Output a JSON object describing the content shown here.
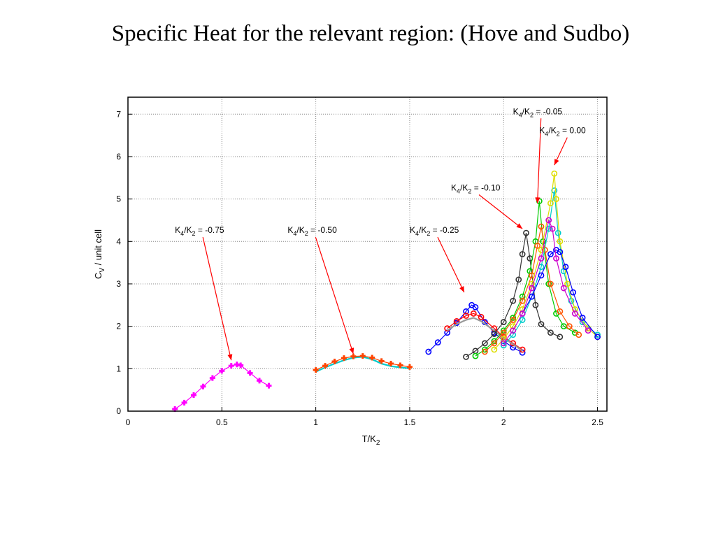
{
  "slide": {
    "title": "Specific Heat for the relevant region: (Hove and Sudbo)"
  },
  "chart_data": {
    "type": "scatter",
    "xlim": [
      0,
      2.55
    ],
    "ylim": [
      0,
      7.4
    ],
    "x_ticks": [
      0,
      0.5,
      1,
      1.5,
      2,
      2.5
    ],
    "x_tick_labels": [
      "0",
      "0.5",
      "1",
      "1.5",
      "2",
      "2.5"
    ],
    "y_ticks": [
      0,
      1,
      2,
      3,
      4,
      5,
      6,
      7
    ],
    "y_tick_labels": [
      "0",
      "1",
      "2",
      "3",
      "4",
      "5",
      "6",
      "7"
    ],
    "xlabel": {
      "main": "T/K",
      "sub": "2"
    },
    "ylabel": {
      "main": "C",
      "sub": "V",
      "rest": " / unit cell"
    },
    "grid": true,
    "annotations": [
      {
        "text": "K4/K2 = -0.75",
        "a": "K",
        "a_sub": "4",
        "b": "/K",
        "b_sub": "2",
        "c": " = -0.75",
        "x": 0.25,
        "y": 4.2,
        "arrow_to": [
          0.55,
          1.2
        ]
      },
      {
        "text": "K4/K2 = -0.50",
        "a": "K",
        "a_sub": "4",
        "b": "/K",
        "b_sub": "2",
        "c": " = -0.50",
        "x": 0.85,
        "y": 4.2,
        "arrow_to": [
          1.2,
          1.35
        ]
      },
      {
        "text": "K4/K2 = -0.25",
        "a": "K",
        "a_sub": "4",
        "b": "/K",
        "b_sub": "2",
        "c": " = -0.25",
        "x": 1.5,
        "y": 4.2,
        "arrow_to": [
          1.79,
          2.8
        ]
      },
      {
        "text": "K4/K2 = -0.10",
        "a": "K",
        "a_sub": "4",
        "b": "/K",
        "b_sub": "2",
        "c": " = -0.10",
        "x": 1.72,
        "y": 5.2,
        "arrow_to": [
          2.1,
          4.3
        ]
      },
      {
        "text": "K4/K2 = -0.05",
        "a": "K",
        "a_sub": "4",
        "b": "/K",
        "b_sub": "2",
        "c": " = -0.05",
        "x": 2.05,
        "y": 7.0,
        "arrow_to": [
          2.18,
          4.9
        ]
      },
      {
        "text": "K4/K2 = 0.00",
        "a": "K",
        "a_sub": "4",
        "b": "/K",
        "b_sub": "2",
        "c": " = 0.00",
        "x": 2.19,
        "y": 6.55,
        "arrow_to": [
          2.27,
          5.8
        ]
      }
    ],
    "series": [
      {
        "color": "#ff00ff",
        "marker": "cross",
        "x": [
          0.25,
          0.3,
          0.35,
          0.4,
          0.45,
          0.5,
          0.55,
          0.58,
          0.6,
          0.65,
          0.7,
          0.75
        ],
        "y": [
          0.05,
          0.2,
          0.38,
          0.58,
          0.78,
          0.95,
          1.07,
          1.1,
          1.08,
          0.9,
          0.72,
          0.6
        ]
      },
      {
        "color": "#00cccc",
        "marker": "line",
        "x": [
          1.0,
          1.05,
          1.1,
          1.15,
          1.2,
          1.25,
          1.3,
          1.35,
          1.4,
          1.45,
          1.5
        ],
        "y": [
          0.93,
          1.03,
          1.12,
          1.2,
          1.26,
          1.28,
          1.22,
          1.12,
          1.06,
          1.03,
          1.01
        ]
      },
      {
        "color": "#ff4400",
        "marker": "cross",
        "x": [
          1.0,
          1.05,
          1.1,
          1.15,
          1.2,
          1.25,
          1.3,
          1.35,
          1.4,
          1.45,
          1.5
        ],
        "y": [
          0.97,
          1.07,
          1.17,
          1.25,
          1.29,
          1.3,
          1.26,
          1.18,
          1.12,
          1.08,
          1.04
        ]
      },
      {
        "color": "#0000ff",
        "marker": "circle",
        "x": [
          1.6,
          1.65,
          1.7,
          1.75,
          1.8,
          1.83,
          1.85,
          1.9,
          1.95,
          2.0,
          2.05,
          2.1
        ],
        "y": [
          1.4,
          1.62,
          1.85,
          2.08,
          2.35,
          2.5,
          2.45,
          2.1,
          1.85,
          1.65,
          1.5,
          1.38
        ]
      },
      {
        "color": "#ff0000",
        "marker": "circle",
        "x": [
          1.7,
          1.75,
          1.8,
          1.84,
          1.88,
          1.95,
          2.0,
          2.05,
          2.1
        ],
        "y": [
          1.95,
          2.12,
          2.25,
          2.3,
          2.22,
          1.95,
          1.75,
          1.6,
          1.45
        ]
      },
      {
        "color": "#999999",
        "marker": "line",
        "x": [
          1.7,
          1.75,
          1.8,
          1.84,
          1.88,
          1.95,
          2.0,
          2.05,
          2.1
        ],
        "y": [
          1.9,
          2.05,
          2.15,
          2.2,
          2.12,
          1.9,
          1.72,
          1.58,
          1.42
        ]
      },
      {
        "color": "#333333",
        "marker": "circle",
        "x": [
          1.8,
          1.85,
          1.9,
          1.95,
          2.0,
          2.05,
          2.08,
          2.1,
          2.12,
          2.14,
          2.17,
          2.2,
          2.25,
          2.3
        ],
        "y": [
          1.28,
          1.42,
          1.6,
          1.82,
          2.1,
          2.6,
          3.1,
          3.7,
          4.2,
          3.6,
          2.5,
          2.05,
          1.85,
          1.75
        ]
      },
      {
        "color": "#00cc00",
        "marker": "circle",
        "x": [
          1.85,
          1.9,
          1.95,
          2.0,
          2.05,
          2.1,
          2.14,
          2.17,
          2.19,
          2.21,
          2.24,
          2.28,
          2.32,
          2.38
        ],
        "y": [
          1.3,
          1.45,
          1.65,
          1.9,
          2.2,
          2.7,
          3.3,
          4.0,
          4.95,
          4.0,
          3.0,
          2.3,
          2.0,
          1.85
        ]
      },
      {
        "color": "#ff5500",
        "marker": "circle",
        "x": [
          1.9,
          1.95,
          2.0,
          2.05,
          2.1,
          2.15,
          2.18,
          2.2,
          2.22,
          2.25,
          2.3,
          2.35,
          2.4
        ],
        "y": [
          1.4,
          1.6,
          1.85,
          2.15,
          2.6,
          3.2,
          3.9,
          4.35,
          3.8,
          3.0,
          2.35,
          2.0,
          1.8
        ]
      },
      {
        "color": "#00cccc",
        "marker": "circle",
        "x": [
          2.0,
          2.05,
          2.1,
          2.15,
          2.2,
          2.24,
          2.27,
          2.29,
          2.32,
          2.36,
          2.42,
          2.5
        ],
        "y": [
          1.55,
          1.8,
          2.15,
          2.7,
          3.4,
          4.3,
          5.2,
          4.2,
          3.3,
          2.6,
          2.1,
          1.8
        ]
      },
      {
        "color": "#dddd00",
        "marker": "circle",
        "x": [
          1.95,
          2.0,
          2.05,
          2.1,
          2.15,
          2.2,
          2.25,
          2.27,
          2.28,
          2.3,
          2.34,
          2.38,
          2.45,
          2.5
        ],
        "y": [
          1.45,
          1.7,
          2.0,
          2.4,
          3.0,
          3.8,
          4.9,
          5.6,
          5.0,
          4.0,
          3.0,
          2.4,
          1.95,
          1.75
        ]
      },
      {
        "color": "#0000ff",
        "marker": "circle",
        "x": [
          2.1,
          2.15,
          2.2,
          2.25,
          2.28,
          2.3,
          2.33,
          2.37,
          2.42,
          2.5
        ],
        "y": [
          2.3,
          2.7,
          3.2,
          3.7,
          3.8,
          3.75,
          3.4,
          2.8,
          2.2,
          1.75
        ]
      },
      {
        "color": "#cc00cc",
        "marker": "circle",
        "x": [
          2.0,
          2.05,
          2.1,
          2.15,
          2.2,
          2.24,
          2.26,
          2.28,
          2.32,
          2.38,
          2.45
        ],
        "y": [
          1.6,
          1.9,
          2.3,
          2.9,
          3.6,
          4.5,
          4.3,
          3.6,
          2.9,
          2.3,
          1.9
        ]
      }
    ]
  }
}
